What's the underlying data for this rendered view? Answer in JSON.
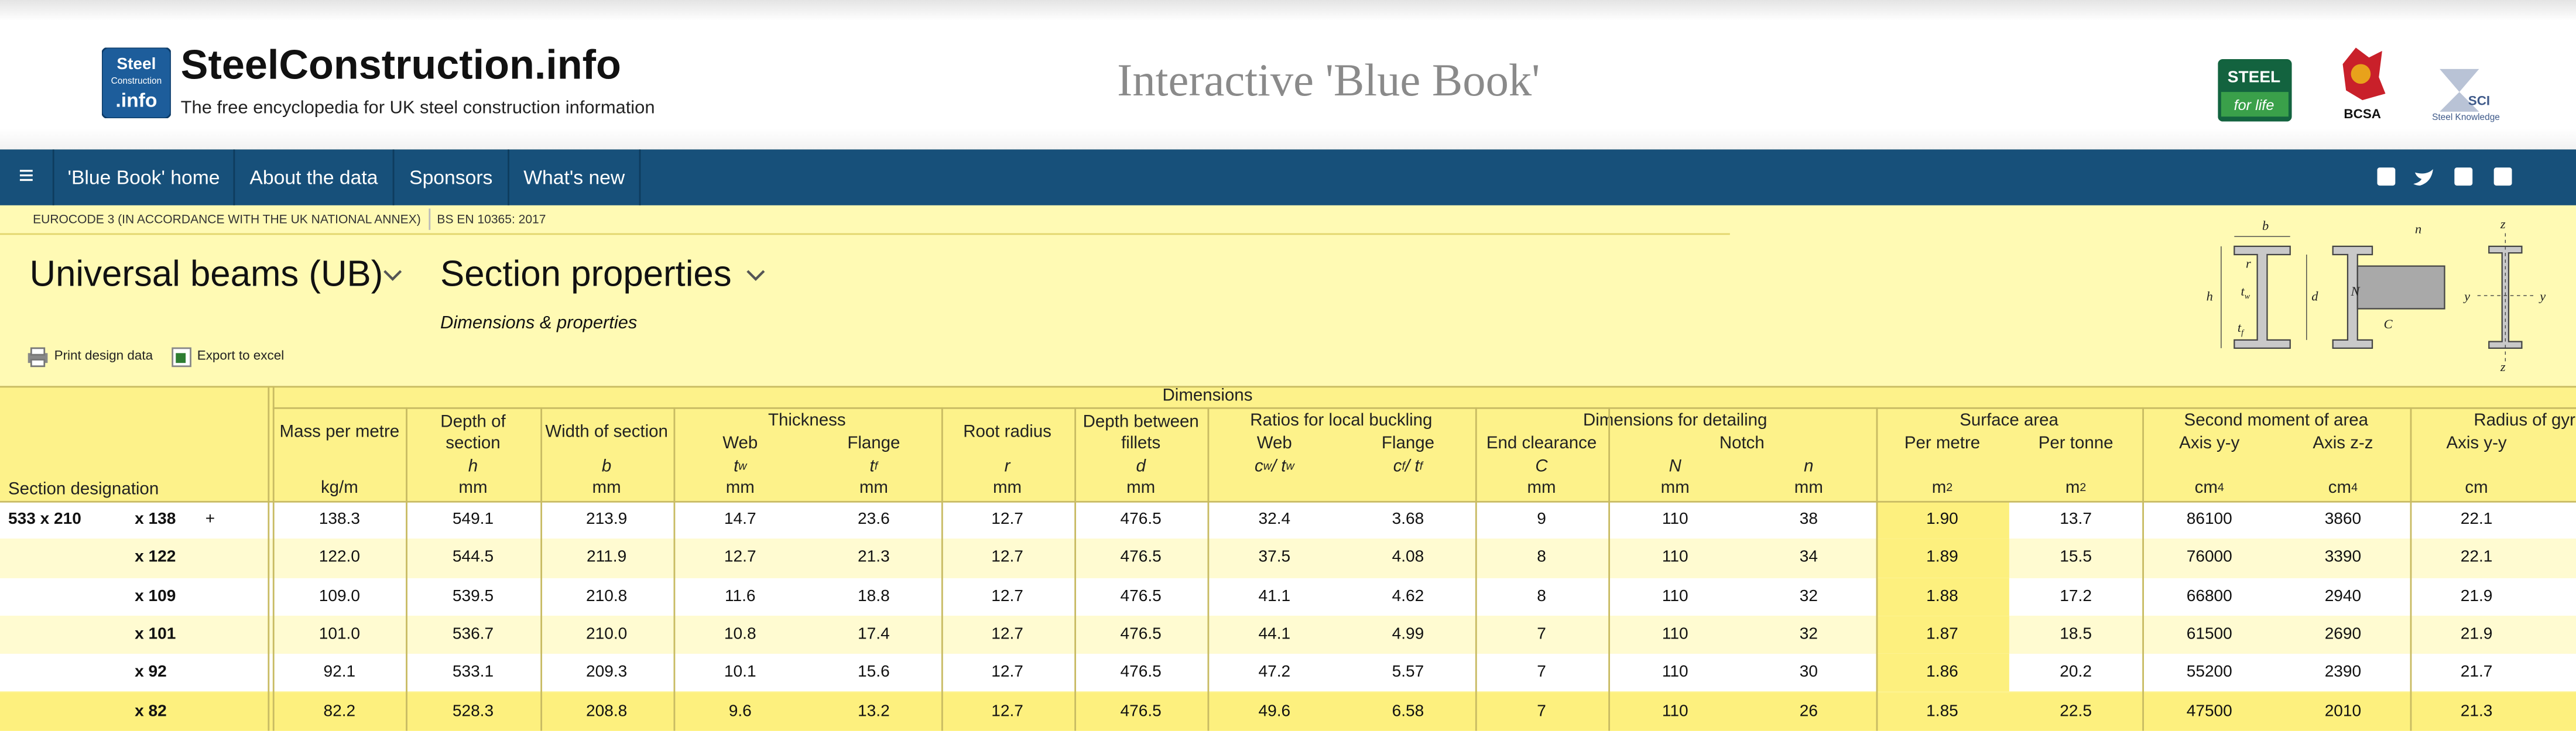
{
  "header": {
    "logo": {
      "line1": "Steel",
      "line2": "Construction",
      "line3": ".info"
    },
    "site_name": "SteelConstruction.info",
    "tagline": "The free encyclopedia for UK steel construction information",
    "page_title": "Interactive 'Blue Book'",
    "partners": {
      "steel_for_life": {
        "line1": "STEEL",
        "line2": "for life"
      },
      "bcsa": "BCSA",
      "sci": {
        "line1": "SCI",
        "line2": "Steel Knowledge"
      }
    }
  },
  "nav": {
    "menu": "≡",
    "items": [
      "'Blue Book' home",
      "About the data",
      "Sponsors",
      "What's new"
    ]
  },
  "breadcrumb": [
    "EUROCODE 3 (IN ACCORDANCE WITH THE UK NATIONAL ANNEX)",
    "BS EN 10365: 2017"
  ],
  "selectors": {
    "section_type": "Universal beams (UB)",
    "property_set": "Section properties",
    "subtitle": "Dimensions & properties"
  },
  "actions": [
    "Print design data",
    "Export to excel"
  ],
  "diagram": {
    "b": "b",
    "r": "r",
    "h": "h",
    "d": "d",
    "t": "t",
    "w": "w",
    "f": "f",
    "n": "n",
    "N": "N",
    "C": "C",
    "z": "z",
    "y": "y"
  },
  "table": {
    "dimensions": "Dimensions",
    "designation": "Section designation",
    "groups": {
      "thickness": "Thickness",
      "ratios": "Ratios for local buckling",
      "detailing": "Dimensions for detailing",
      "notch": "Notch",
      "surface": "Surface area",
      "second_moment": "Second moment of area",
      "radius": "Radius of gyration"
    },
    "columns": [
      {
        "label": "Mass per metre",
        "unit": [
          {
            "text": "kg/m"
          }
        ]
      },
      {
        "label": "Depth of section",
        "symbol": [
          {
            "text": "h"
          }
        ],
        "unit": [
          {
            "text": "mm"
          }
        ]
      },
      {
        "label": "Width of section",
        "symbol": [
          {
            "text": "b"
          }
        ],
        "unit": [
          {
            "text": "mm"
          }
        ]
      },
      {
        "sublabel": "Web",
        "symbol": [
          {
            "text": "t"
          },
          {
            "text": "w",
            "pos": "sub"
          }
        ],
        "unit": [
          {
            "text": "mm"
          }
        ]
      },
      {
        "sublabel": "Flange",
        "symbol": [
          {
            "text": "t"
          },
          {
            "text": "f",
            "pos": "sub"
          }
        ],
        "unit": [
          {
            "text": "mm"
          }
        ]
      },
      {
        "label": "Root radius",
        "symbol": [
          {
            "text": "r"
          }
        ],
        "unit": [
          {
            "text": "mm"
          }
        ]
      },
      {
        "label": "Depth between fillets",
        "symbol": [
          {
            "text": "d"
          }
        ],
        "unit": [
          {
            "text": "mm"
          }
        ]
      },
      {
        "sublabel": "Web",
        "symbol": [
          {
            "text": "c"
          },
          {
            "text": "w",
            "pos": "sub"
          },
          {
            "text": " / t"
          },
          {
            "text": "w",
            "pos": "sub"
          }
        ]
      },
      {
        "sublabel": "Flange",
        "symbol": [
          {
            "text": "c"
          },
          {
            "text": "f",
            "pos": "sub"
          },
          {
            "text": " / t"
          },
          {
            "text": "f",
            "pos": "sub"
          }
        ]
      },
      {
        "sublabel": "End clearance",
        "symbol": [
          {
            "text": "C"
          }
        ],
        "unit": [
          {
            "text": "mm"
          }
        ]
      },
      {
        "symbol": [
          {
            "text": "N"
          }
        ],
        "unit": [
          {
            "text": "mm"
          }
        ]
      },
      {
        "symbol": [
          {
            "text": "n"
          }
        ],
        "unit": [
          {
            "text": "mm"
          }
        ]
      },
      {
        "sublabel": "Per metre",
        "unit": [
          {
            "text": "m"
          },
          {
            "text": "2",
            "pos": "sup"
          }
        ]
      },
      {
        "sublabel": "Per tonne",
        "unit": [
          {
            "text": "m"
          },
          {
            "text": "2",
            "pos": "sup"
          }
        ]
      },
      {
        "sublabel": "Axis y-y",
        "unit": [
          {
            "text": "cm"
          },
          {
            "text": "4",
            "pos": "sup"
          }
        ]
      },
      {
        "sublabel": "Axis z-z",
        "unit": [
          {
            "text": "cm"
          },
          {
            "text": "4",
            "pos": "sup"
          }
        ]
      },
      {
        "sublabel": "Axis y-y",
        "unit": [
          {
            "text": "cm"
          }
        ]
      }
    ],
    "rows": [
      {
        "serial": "533 x 210",
        "designation": "x 138",
        "marker": "+",
        "values": [
          "138.3",
          "549.1",
          "213.9",
          "14.7",
          "23.6",
          "12.7",
          "476.5",
          "32.4",
          "3.68",
          "9",
          "110",
          "38",
          "1.90",
          "13.7",
          "86100",
          "3860",
          "22.1"
        ]
      },
      {
        "designation": "x 122",
        "values": [
          "122.0",
          "544.5",
          "211.9",
          "12.7",
          "21.3",
          "12.7",
          "476.5",
          "37.5",
          "4.08",
          "8",
          "110",
          "34",
          "1.89",
          "15.5",
          "76000",
          "3390",
          "22.1"
        ]
      },
      {
        "designation": "x 109",
        "values": [
          "109.0",
          "539.5",
          "210.8",
          "11.6",
          "18.8",
          "12.7",
          "476.5",
          "41.1",
          "4.62",
          "8",
          "110",
          "32",
          "1.88",
          "17.2",
          "66800",
          "2940",
          "21.9"
        ]
      },
      {
        "designation": "x 101",
        "values": [
          "101.0",
          "536.7",
          "210.0",
          "10.8",
          "17.4",
          "12.7",
          "476.5",
          "44.1",
          "4.99",
          "7",
          "110",
          "32",
          "1.87",
          "18.5",
          "61500",
          "2690",
          "21.9"
        ]
      },
      {
        "designation": "x 92",
        "values": [
          "92.1",
          "533.1",
          "209.3",
          "10.1",
          "15.6",
          "12.7",
          "476.5",
          "47.2",
          "5.57",
          "7",
          "110",
          "30",
          "1.86",
          "20.2",
          "55200",
          "2390",
          "21.7"
        ]
      },
      {
        "designation": "x 82",
        "values": [
          "82.2",
          "528.3",
          "208.8",
          "9.6",
          "13.2",
          "12.7",
          "476.5",
          "49.6",
          "6.58",
          "7",
          "110",
          "26",
          "1.85",
          "22.5",
          "47500",
          "2010",
          "21.3"
        ]
      }
    ]
  }
}
